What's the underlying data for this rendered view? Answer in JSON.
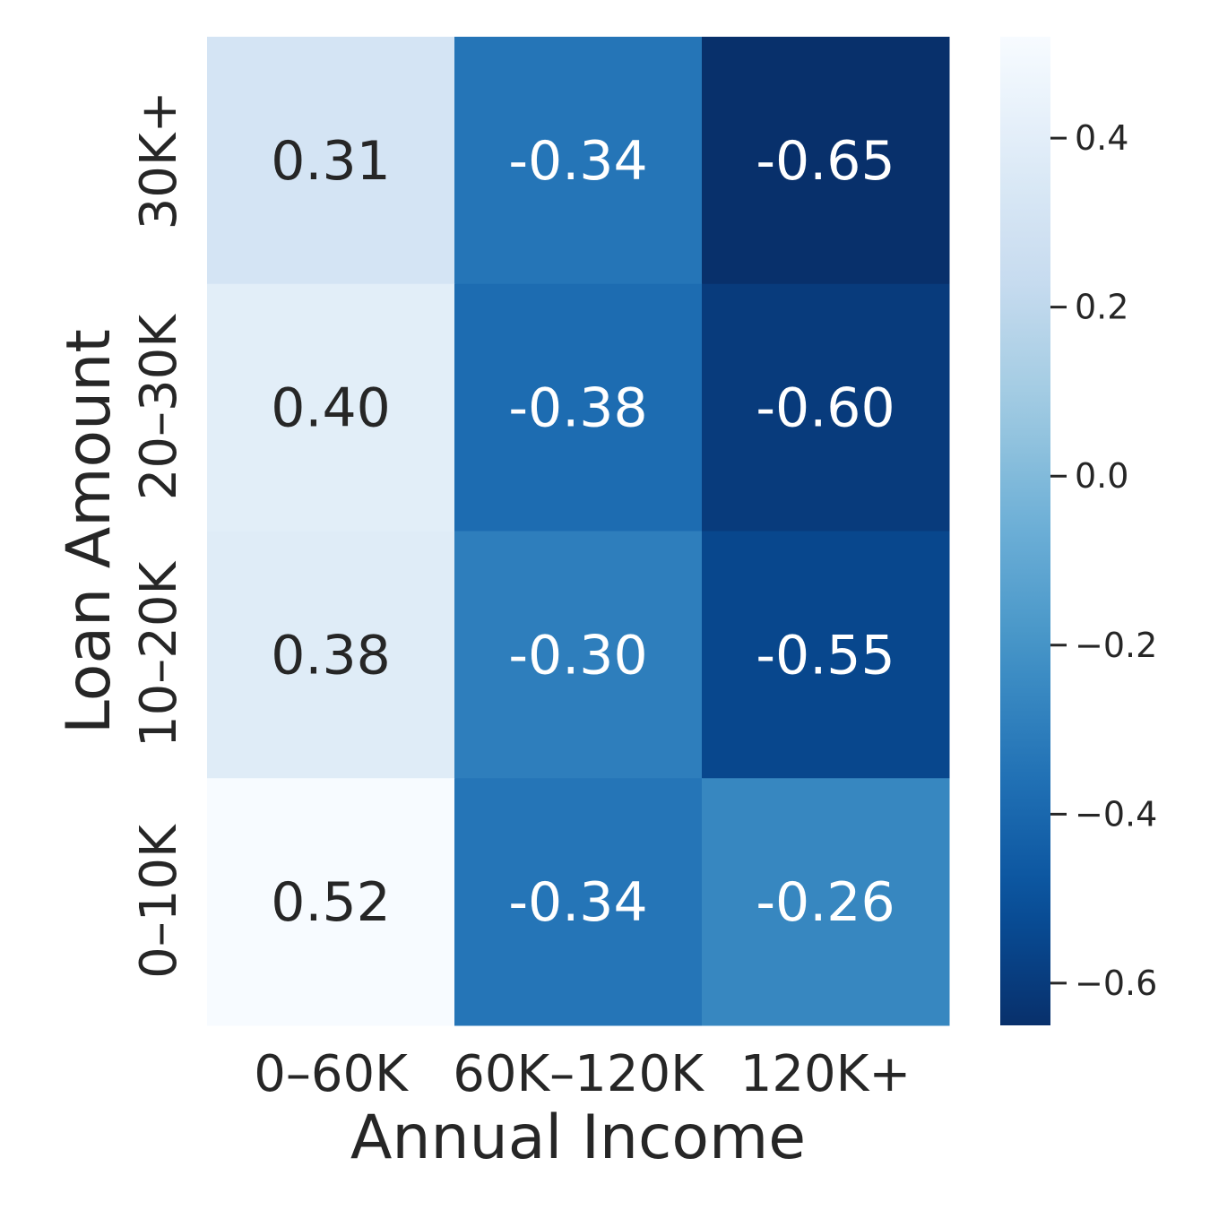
{
  "chart_data": {
    "type": "heatmap",
    "title": "",
    "xlabel": "Annual Income",
    "ylabel": "Loan Amount",
    "x_categories": [
      "0–60K",
      "60K–120K",
      "120K+"
    ],
    "y_categories": [
      "30K+",
      "20–30K",
      "10–20K",
      "0–10K"
    ],
    "values": [
      [
        0.31,
        -0.34,
        -0.65
      ],
      [
        0.4,
        -0.38,
        -0.6
      ],
      [
        0.38,
        -0.3,
        -0.55
      ],
      [
        0.52,
        -0.34,
        -0.26
      ]
    ],
    "cell_labels": [
      [
        "0.31",
        "-0.34",
        "-0.65"
      ],
      [
        "0.40",
        "-0.38",
        "-0.60"
      ],
      [
        "0.38",
        "-0.30",
        "-0.55"
      ],
      [
        "0.52",
        "-0.34",
        "-0.26"
      ]
    ],
    "colormap": "Blues_r",
    "vmin": -0.65,
    "vmax": 0.52,
    "colorbar": {
      "ticks": [
        0.4,
        0.2,
        0.0,
        -0.2,
        -0.4,
        -0.6
      ],
      "tick_labels": [
        "0.4",
        "0.2",
        "0.0",
        "−0.2",
        "−0.4",
        "−0.6"
      ]
    }
  }
}
